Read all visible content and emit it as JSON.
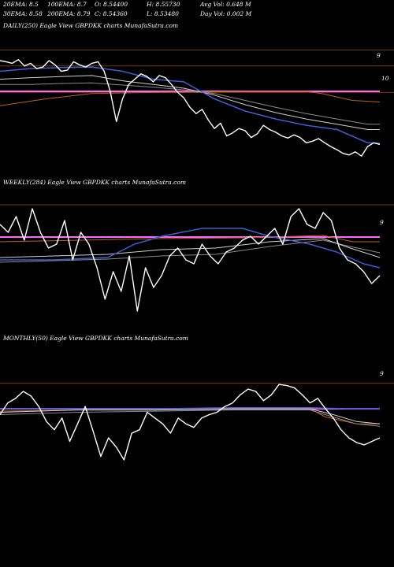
{
  "header": {
    "row1": [
      "20EMA: 8.5",
      "100EMA: 8.7",
      "O: 8.54400",
      "H: 8.55730",
      "Avg Vol: 0.648  M"
    ],
    "row2": [
      "30EMA: 8.58",
      "200EMA: 8.79",
      "C: 8.54360",
      "L: 8.53480",
      "Day Vol: 0.002  M"
    ]
  },
  "panels": [
    {
      "label": "DAILY(250) Eagle   View  GBPDKK charts MunafaSutra.com",
      "ticks": [
        "9",
        "10"
      ]
    },
    {
      "label": "WEEKLY(284) Eagle   View  GBPDKK charts MunafaSutra.com",
      "ticks": [
        "9"
      ]
    },
    {
      "label": "MONTHLY(50) Eagle   View  GBPDKK charts MunafaSutra.com",
      "ticks": [
        "9"
      ]
    }
  ],
  "colors": {
    "background": "#000000",
    "price": "#ffffff",
    "ema_short": "#3a5fd6",
    "ema_mid": "#cfcfcf",
    "ema_long": "#8a8a8a",
    "ema_orange": "#c0601a",
    "level_line": "#ff66ff",
    "grid": "#7a3a00"
  },
  "chart_data": [
    {
      "type": "line",
      "title": "DAILY(250) Eagle   View  GBPDKK charts MunafaSutra.com",
      "ylim": [
        11.05,
        8.45
      ],
      "yticks": [
        9,
        10
      ],
      "gridlines": [
        8.8,
        9.1,
        9.6
      ],
      "hlines": [
        {
          "name": "level",
          "y": 9.58
        }
      ],
      "series": [
        {
          "role": "price",
          "x": [
            0,
            4,
            8,
            12,
            16,
            20,
            24,
            28,
            32,
            36,
            40,
            44,
            48,
            52,
            56,
            60,
            64,
            68,
            72,
            76,
            80,
            84,
            88,
            92,
            96,
            100,
            104,
            108,
            112,
            116,
            120,
            124,
            128,
            132,
            136,
            140,
            144,
            148,
            152,
            156,
            160,
            164,
            168,
            172,
            176,
            180,
            184,
            188,
            192,
            196,
            200,
            204,
            208,
            212,
            216,
            220,
            224,
            228,
            232,
            236,
            240,
            244,
            248
          ],
          "y": [
            9.0,
            9.02,
            9.05,
            8.98,
            9.1,
            9.05,
            9.15,
            9.12,
            9.0,
            9.08,
            9.2,
            9.18,
            9.02,
            9.08,
            9.12,
            9.05,
            9.02,
            9.2,
            9.58,
            10.15,
            9.72,
            9.45,
            9.35,
            9.25,
            9.3,
            9.4,
            9.28,
            9.32,
            9.45,
            9.6,
            9.7,
            9.88,
            10.0,
            9.92,
            10.12,
            10.28,
            10.18,
            10.42,
            10.36,
            10.28,
            10.32,
            10.45,
            10.38,
            10.22,
            10.3,
            10.35,
            10.42,
            10.46,
            10.4,
            10.45,
            10.55,
            10.52,
            10.47,
            10.55,
            10.62,
            10.68,
            10.75,
            10.78,
            10.72,
            10.8,
            10.62,
            10.55,
            10.58
          ]
        },
        {
          "role": "ema_short",
          "x": [
            0,
            20,
            40,
            60,
            80,
            100,
            120,
            140,
            160,
            180,
            200,
            220,
            240,
            248
          ],
          "y": [
            9.2,
            9.15,
            9.13,
            9.12,
            9.2,
            9.35,
            9.4,
            9.72,
            9.95,
            10.1,
            10.22,
            10.3,
            10.55,
            10.56
          ]
        },
        {
          "role": "ema_mid",
          "x": [
            0,
            20,
            40,
            60,
            80,
            100,
            120,
            140,
            160,
            180,
            200,
            220,
            240,
            248
          ],
          "y": [
            9.35,
            9.32,
            9.3,
            9.28,
            9.38,
            9.45,
            9.52,
            9.65,
            9.83,
            9.98,
            10.1,
            10.2,
            10.3,
            10.3
          ]
        },
        {
          "role": "ema_long",
          "x": [
            0,
            20,
            40,
            60,
            80,
            100,
            120,
            140,
            160,
            180,
            200,
            220,
            240,
            248
          ],
          "y": [
            9.45,
            9.45,
            9.43,
            9.42,
            9.46,
            9.5,
            9.55,
            9.62,
            9.75,
            9.88,
            10.0,
            10.1,
            10.2,
            10.2
          ]
        },
        {
          "role": "ema_orange",
          "x": [
            0,
            30,
            60,
            100,
            160,
            200,
            210,
            230,
            248
          ],
          "y": [
            9.85,
            9.72,
            9.62,
            9.6,
            9.58,
            9.58,
            9.62,
            9.75,
            9.78
          ]
        }
      ]
    },
    {
      "type": "line",
      "title": "WEEKLY(284) Eagle   View  GBPDKK charts MunafaSutra.com",
      "ylim": [
        10.6,
        8.85
      ],
      "yticks": [
        9
      ],
      "gridlines": [
        9.05
      ],
      "hlines": [
        {
          "name": "level",
          "y": 9.46
        }
      ],
      "series": [
        {
          "role": "price",
          "x": [
            0,
            6,
            12,
            18,
            24,
            30,
            36,
            42,
            48,
            54,
            60,
            66,
            72,
            78,
            84,
            90,
            96,
            102,
            108,
            114,
            120,
            126,
            132,
            138,
            144,
            150,
            156,
            162,
            168,
            174,
            180,
            186,
            192,
            198,
            204,
            210,
            216,
            222,
            228,
            234,
            240,
            246,
            252,
            258,
            264,
            270,
            276,
            282
          ],
          "y": [
            9.3,
            9.4,
            9.2,
            9.5,
            9.1,
            9.4,
            9.6,
            9.55,
            9.25,
            9.75,
            9.4,
            9.55,
            9.85,
            10.25,
            9.9,
            10.15,
            9.7,
            10.4,
            9.85,
            10.1,
            9.95,
            9.7,
            9.6,
            9.75,
            9.8,
            9.55,
            9.7,
            9.8,
            9.65,
            9.6,
            9.5,
            9.45,
            9.55,
            9.45,
            9.35,
            9.55,
            9.2,
            9.1,
            9.3,
            9.35,
            9.15,
            9.25,
            9.6,
            9.75,
            9.8,
            9.9,
            10.05,
            9.95
          ]
        },
        {
          "role": "ema_short",
          "x": [
            0,
            40,
            80,
            100,
            120,
            150,
            180,
            200,
            230,
            250,
            270,
            282
          ],
          "y": [
            9.75,
            9.75,
            9.72,
            9.55,
            9.45,
            9.35,
            9.35,
            9.45,
            9.55,
            9.65,
            9.8,
            9.85
          ]
        },
        {
          "role": "ema_mid",
          "x": [
            0,
            40,
            80,
            120,
            160,
            200,
            240,
            260,
            282
          ],
          "y": [
            9.72,
            9.7,
            9.68,
            9.62,
            9.6,
            9.52,
            9.48,
            9.6,
            9.72
          ]
        },
        {
          "role": "ema_long",
          "x": [
            0,
            40,
            80,
            120,
            160,
            200,
            240,
            260,
            282
          ],
          "y": [
            9.78,
            9.76,
            9.74,
            9.7,
            9.68,
            9.58,
            9.5,
            9.58,
            9.66
          ]
        },
        {
          "role": "ema_orange",
          "x": [
            0,
            60,
            120,
            180,
            240,
            262,
            282
          ],
          "y": [
            9.52,
            9.5,
            9.48,
            9.47,
            9.44,
            9.52,
            9.52
          ]
        }
      ]
    },
    {
      "type": "line",
      "title": "MONTHLY(50) Eagle   View  GBPDKK charts MunafaSutra.com",
      "ylim": [
        9.82,
        8.62
      ],
      "yticks": [
        9
      ],
      "gridlines": [
        8.95
      ],
      "hlines": [
        {
          "name": "level",
          "y": 9.17
        }
      ],
      "series": [
        {
          "role": "price",
          "x": [
            0,
            1,
            2,
            3,
            4,
            5,
            6,
            7,
            8,
            9,
            10,
            11,
            12,
            13,
            14,
            15,
            16,
            17,
            18,
            19,
            20,
            21,
            22,
            23,
            24,
            25,
            26,
            27,
            28,
            29,
            30,
            31,
            32,
            33,
            34,
            35,
            36,
            37,
            38,
            39,
            40,
            41,
            42,
            43,
            44,
            45,
            46,
            47,
            48,
            49
          ],
          "y": [
            9.22,
            9.12,
            9.08,
            9.02,
            9.06,
            9.15,
            9.28,
            9.35,
            9.25,
            9.45,
            9.3,
            9.15,
            9.36,
            9.58,
            9.42,
            9.5,
            9.61,
            9.38,
            9.35,
            9.2,
            9.25,
            9.3,
            9.38,
            9.25,
            9.3,
            9.33,
            9.25,
            9.22,
            9.2,
            9.15,
            9.12,
            9.05,
            9.0,
            9.02,
            9.1,
            9.05,
            8.96,
            8.97,
            8.99,
            9.05,
            9.12,
            9.08,
            9.17,
            9.25,
            9.35,
            9.42,
            9.46,
            9.48,
            9.45,
            9.42
          ]
        },
        {
          "role": "ema_short",
          "x": [
            0,
            10,
            20,
            30,
            40,
            45,
            49
          ],
          "y": [
            9.17,
            9.17,
            9.17,
            9.16,
            9.16,
            9.17,
            9.17
          ]
        },
        {
          "role": "ema_mid",
          "x": [
            0,
            10,
            20,
            30,
            40,
            43,
            46,
            49
          ],
          "y": [
            9.2,
            9.18,
            9.18,
            9.17,
            9.17,
            9.22,
            9.28,
            9.3
          ]
        },
        {
          "role": "ema_long",
          "x": [
            0,
            10,
            20,
            30,
            40,
            43,
            46,
            49
          ],
          "y": [
            9.22,
            9.2,
            9.19,
            9.18,
            9.18,
            9.24,
            9.3,
            9.32
          ]
        },
        {
          "role": "ema_orange",
          "x": [
            0,
            10,
            20,
            30,
            40,
            42,
            44,
            46,
            49
          ],
          "y": [
            9.19,
            9.18,
            9.18,
            9.17,
            9.17,
            9.24,
            9.27,
            9.3,
            9.3
          ]
        }
      ]
    }
  ]
}
